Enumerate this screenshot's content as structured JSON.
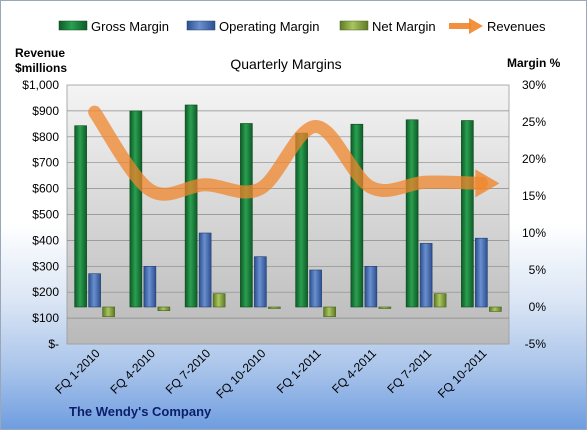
{
  "chart_data": {
    "type": "bar",
    "title": "Quarterly Margins",
    "categories": [
      "FQ 1-2010",
      "FQ 4-2010",
      "FQ 7-2010",
      "FQ 10-2010",
      "FQ 1-2011",
      "FQ 4-2011",
      "FQ 7-2011",
      "FQ 10-2011"
    ],
    "series": [
      {
        "name": "Gross Margin",
        "axis": "right",
        "color": "#1f7a3c",
        "values": [
          24.5,
          26.5,
          27.3,
          24.8,
          23.5,
          24.7,
          25.3,
          25.2
        ]
      },
      {
        "name": "Operating Margin",
        "axis": "right",
        "color": "#4f74b8",
        "values": [
          4.5,
          5.5,
          10.0,
          6.8,
          5.0,
          5.5,
          8.6,
          9.3
        ]
      },
      {
        "name": "Net Margin",
        "axis": "right",
        "color": "#8fad4a",
        "values": [
          -1.3,
          -0.5,
          1.8,
          -0.2,
          -1.3,
          -0.2,
          1.8,
          -0.6
        ]
      },
      {
        "name": "Revenues",
        "axis": "left",
        "type": "line",
        "color": "#f0862c",
        "values": [
          895,
          595,
          615,
          600,
          840,
          605,
          625,
          620
        ]
      }
    ],
    "ylabel_left": [
      "Revenue",
      "$millions"
    ],
    "ylabel_right": "Margin %",
    "y_left": {
      "min": 0,
      "max": 1000,
      "step": 100,
      "ticks": [
        "$-",
        "$100",
        "$200",
        "$300",
        "$400",
        "$500",
        "$600",
        "$700",
        "$800",
        "$900",
        "$1,000"
      ]
    },
    "y_right": {
      "min": -5,
      "max": 30,
      "step": 5,
      "ticks": [
        "-5%",
        "0%",
        "5%",
        "10%",
        "15%",
        "20%",
        "25%",
        "30%"
      ]
    },
    "grid": true,
    "legend_position": "top",
    "footer": "The Wendy's Company"
  }
}
